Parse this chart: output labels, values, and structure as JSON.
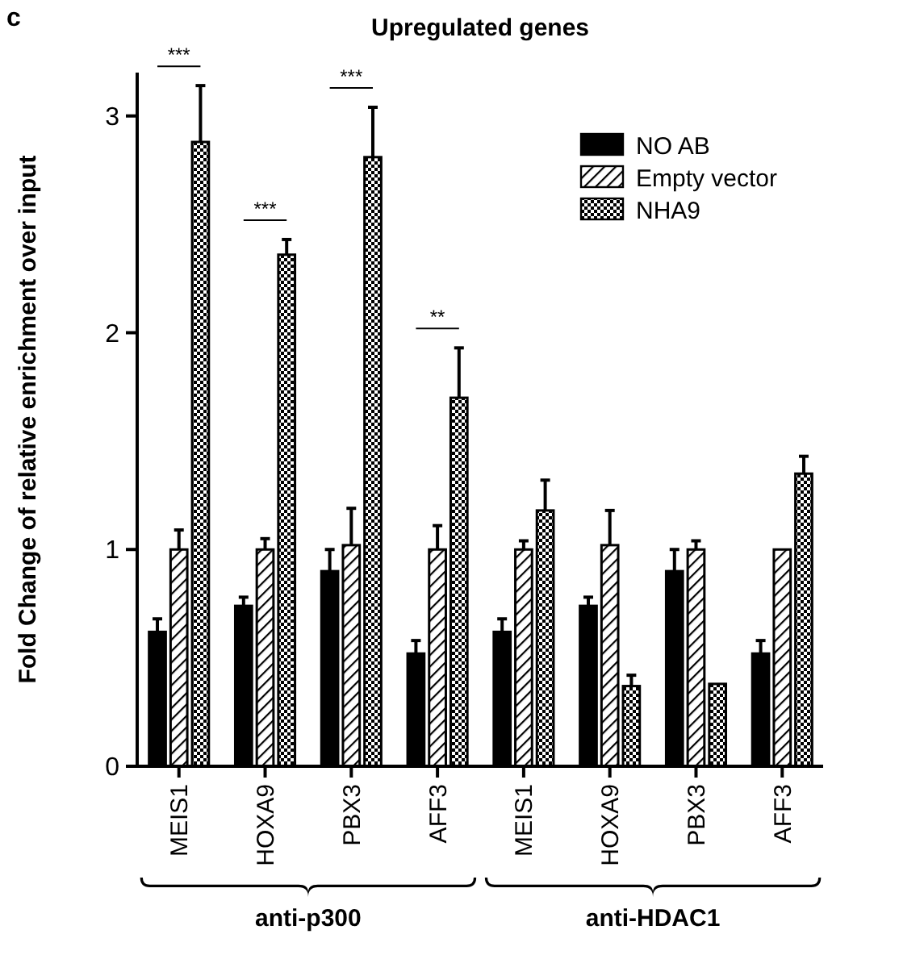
{
  "chart_data": {
    "type": "bar",
    "title": "Upregulated genes",
    "ylabel": "Fold Change of relative enrichment over input",
    "categories": [
      "MEIS1",
      "HOXA9",
      "PBX3",
      "AFF3",
      "MEIS1",
      "HOXA9",
      "PBX3",
      "AFF3"
    ],
    "series": [
      {
        "name": "NO AB",
        "color": "#000000",
        "values": [
          0.62,
          0.74,
          0.9,
          0.52,
          0.62,
          0.74,
          0.9,
          0.52
        ],
        "errors": [
          0.06,
          0.04,
          0.1,
          0.06,
          0.06,
          0.04,
          0.1,
          0.06
        ]
      },
      {
        "name": "Empty vector",
        "color": "#000000",
        "values": [
          1.0,
          1.0,
          1.02,
          1.0,
          1.0,
          1.02,
          1.0,
          1.0
        ],
        "errors": [
          0.09,
          0.05,
          0.17,
          0.11,
          0.04,
          0.16,
          0.04,
          null
        ]
      },
      {
        "name": "NHA9",
        "color": "#000000",
        "values": [
          2.88,
          2.36,
          2.81,
          1.7,
          1.18,
          0.37,
          0.38,
          1.35
        ],
        "errors": [
          0.26,
          0.07,
          0.23,
          0.23,
          0.14,
          0.05,
          null,
          0.08
        ]
      }
    ],
    "ylim": [
      0,
      3.2
    ],
    "yticks": [
      0,
      1,
      2,
      3
    ],
    "grid": false,
    "legend": "top right",
    "annotations": [
      "c",
      "***",
      "***",
      "***",
      "**",
      "anti-p300",
      "anti-HDAC1"
    ]
  }
}
